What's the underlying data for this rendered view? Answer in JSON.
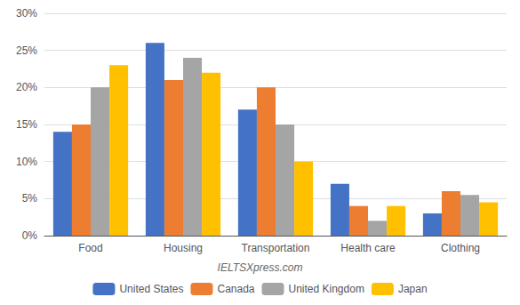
{
  "chart_data": {
    "type": "bar",
    "categories": [
      "Food",
      "Housing",
      "Transportation",
      "Health care",
      "Clothing"
    ],
    "series": [
      {
        "name": "United States",
        "color": "#4472C4",
        "values": [
          14,
          26,
          17,
          7,
          3
        ]
      },
      {
        "name": "Canada",
        "color": "#ED7D31",
        "values": [
          15,
          21,
          20,
          4,
          6
        ]
      },
      {
        "name": "United Kingdom",
        "color": "#A5A5A5",
        "values": [
          20,
          24,
          15,
          2,
          5.5
        ]
      },
      {
        "name": "Japan",
        "color": "#FFC000",
        "values": [
          23,
          22,
          10,
          4,
          4.5
        ]
      }
    ],
    "ylim": [
      0,
      30
    ],
    "yticks": [
      {
        "value": 0,
        "label": "0%"
      },
      {
        "value": 5,
        "label": "5%"
      },
      {
        "value": 10,
        "label": "10%"
      },
      {
        "value": 15,
        "label": "15%"
      },
      {
        "value": 20,
        "label": "20%"
      },
      {
        "value": 25,
        "label": "25%"
      },
      {
        "value": 30,
        "label": "30%"
      }
    ],
    "grid": true,
    "legend": "bottom",
    "annotations": [
      "IELTSXpress.com"
    ]
  }
}
